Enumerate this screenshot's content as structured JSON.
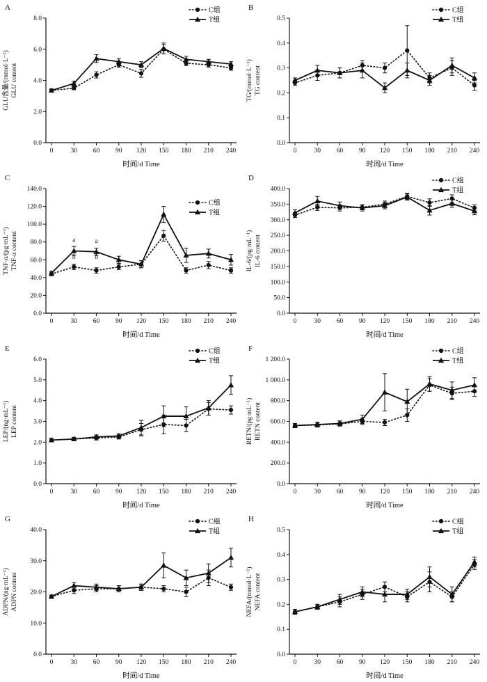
{
  "figure": {
    "xlabel": "时间/d Time",
    "legend": [
      "C组",
      "T组"
    ],
    "ink_color": "#111111"
  },
  "chart_data": [
    {
      "id": "A",
      "panel_label": "A",
      "type": "line",
      "x": [
        0,
        30,
        60,
        90,
        120,
        150,
        180,
        210,
        240
      ],
      "xlabel": "时间/d Time",
      "ylabel_cn": "GLU含量/(mmol·L⁻¹)",
      "ylabel_en": "GLU content",
      "ylim": [
        0,
        8
      ],
      "yticks": [
        0,
        2,
        4,
        6,
        8
      ],
      "ytick_labels": [
        "0.0",
        "2.0",
        "4.0",
        "6.0",
        "8.0"
      ],
      "series": [
        {
          "name": "C组",
          "marker": "circle",
          "line": "dotted",
          "values": [
            3.35,
            3.5,
            4.35,
            5.0,
            4.45,
            6.0,
            5.1,
            5.0,
            4.8
          ],
          "errors": [
            0.1,
            0.1,
            0.2,
            0.15,
            0.25,
            0.3,
            0.15,
            0.15,
            0.15
          ]
        },
        {
          "name": "T组",
          "marker": "triangle",
          "line": "solid",
          "values": [
            3.35,
            3.8,
            5.4,
            5.2,
            5.0,
            6.05,
            5.35,
            5.2,
            5.05
          ],
          "errors": [
            0.1,
            0.15,
            0.25,
            0.2,
            0.2,
            0.35,
            0.2,
            0.15,
            0.15
          ]
        }
      ],
      "annotations": []
    },
    {
      "id": "B",
      "panel_label": "B",
      "type": "line",
      "x": [
        0,
        30,
        60,
        90,
        120,
        150,
        180,
        210,
        240
      ],
      "xlabel": "时间/d Time",
      "ylabel_cn": "TG/(mmol·L⁻¹)",
      "ylabel_en": "TG content",
      "ylim": [
        0,
        0.5
      ],
      "yticks": [
        0,
        0.1,
        0.2,
        0.3,
        0.4,
        0.5
      ],
      "ytick_labels": [
        "0.0",
        "0.1",
        "0.2",
        "0.3",
        "0.4",
        "0.5"
      ],
      "series": [
        {
          "name": "C组",
          "marker": "circle",
          "line": "dotted",
          "values": [
            0.24,
            0.27,
            0.28,
            0.31,
            0.3,
            0.37,
            0.26,
            0.3,
            0.23
          ],
          "errors": [
            0.01,
            0.02,
            0.02,
            0.02,
            0.02,
            0.1,
            0.02,
            0.03,
            0.02
          ]
        },
        {
          "name": "T组",
          "marker": "triangle",
          "line": "solid",
          "values": [
            0.25,
            0.29,
            0.28,
            0.29,
            0.22,
            0.29,
            0.25,
            0.31,
            0.26
          ],
          "errors": [
            0.01,
            0.02,
            0.02,
            0.03,
            0.02,
            0.03,
            0.02,
            0.03,
            0.02
          ]
        }
      ],
      "annotations": []
    },
    {
      "id": "C",
      "panel_label": "C",
      "type": "line",
      "x": [
        0,
        30,
        60,
        90,
        120,
        150,
        180,
        210,
        240
      ],
      "xlabel": "时间/d Time",
      "ylabel_cn": "TNF-α/(pg·mL⁻¹)",
      "ylabel_en": "TNF-α content",
      "ylim": [
        0,
        140
      ],
      "yticks": [
        0,
        20,
        40,
        60,
        80,
        100,
        120,
        140
      ],
      "ytick_labels": [
        "0.0",
        "20.0",
        "40.0",
        "60.0",
        "80.0",
        "100.0",
        "120.0",
        "140.0"
      ],
      "series": [
        {
          "name": "C组",
          "marker": "circle",
          "line": "dotted",
          "values": [
            44,
            52,
            48,
            52,
            55,
            87,
            48,
            54,
            48
          ],
          "errors": [
            2,
            3,
            3,
            3,
            4,
            6,
            3,
            4,
            3
          ]
        },
        {
          "name": "T组",
          "marker": "triangle",
          "line": "solid",
          "values": [
            45,
            70,
            69,
            60,
            55,
            111,
            65,
            67,
            60
          ],
          "errors": [
            2,
            5,
            4,
            4,
            4,
            9,
            8,
            5,
            6
          ]
        }
      ],
      "annotations": [
        {
          "x": 30,
          "y": 80,
          "text": "a"
        },
        {
          "x": 60,
          "y": 79,
          "text": "a"
        },
        {
          "x": 30,
          "y": 61,
          "text": "b"
        },
        {
          "x": 60,
          "y": 61,
          "text": "b"
        }
      ]
    },
    {
      "id": "D",
      "panel_label": "D",
      "type": "line",
      "x": [
        0,
        30,
        60,
        90,
        120,
        150,
        180,
        210,
        240
      ],
      "xlabel": "时间/d Time",
      "ylabel_cn": "IL-6/(pg·mL⁻¹)",
      "ylabel_en": "IL-6 content",
      "ylim": [
        0,
        400
      ],
      "yticks": [
        0,
        50,
        100,
        150,
        200,
        250,
        300,
        350,
        400
      ],
      "ytick_labels": [
        "0.0",
        "50.0",
        "100.0",
        "150.0",
        "200.0",
        "250.0",
        "300.0",
        "350.0",
        "400.0"
      ],
      "series": [
        {
          "name": "C组",
          "marker": "circle",
          "line": "dotted",
          "values": [
            315,
            340,
            338,
            340,
            350,
            375,
            355,
            368,
            338
          ],
          "errors": [
            8,
            10,
            10,
            8,
            10,
            10,
            12,
            12,
            10
          ]
        },
        {
          "name": "T组",
          "marker": "triangle",
          "line": "solid",
          "values": [
            322,
            360,
            345,
            338,
            345,
            373,
            330,
            352,
            328
          ],
          "errors": [
            10,
            15,
            12,
            10,
            10,
            10,
            15,
            12,
            12
          ]
        }
      ],
      "annotations": []
    },
    {
      "id": "E",
      "panel_label": "E",
      "type": "line",
      "x": [
        0,
        30,
        60,
        90,
        120,
        150,
        180,
        210,
        240
      ],
      "xlabel": "时间/d Time",
      "ylabel_cn": "LEP/(ng·mL⁻¹)",
      "ylabel_en": "LEP content",
      "ylim": [
        0,
        6
      ],
      "yticks": [
        0,
        1,
        2,
        3,
        4,
        5,
        6
      ],
      "ytick_labels": [
        "0.0",
        "1.0",
        "2.0",
        "3.0",
        "4.0",
        "5.0",
        "6.0"
      ],
      "series": [
        {
          "name": "C组",
          "marker": "circle",
          "line": "dotted",
          "values": [
            2.1,
            2.15,
            2.2,
            2.25,
            2.6,
            2.85,
            2.8,
            3.6,
            3.55
          ],
          "errors": [
            0.08,
            0.08,
            0.1,
            0.1,
            0.3,
            0.45,
            0.3,
            0.3,
            0.2
          ]
        },
        {
          "name": "T组",
          "marker": "triangle",
          "line": "solid",
          "values": [
            2.1,
            2.15,
            2.25,
            2.3,
            2.7,
            3.25,
            3.25,
            3.65,
            4.75
          ],
          "errors": [
            0.08,
            0.08,
            0.1,
            0.1,
            0.35,
            0.5,
            0.45,
            0.35,
            0.45
          ]
        }
      ],
      "annotations": []
    },
    {
      "id": "F",
      "panel_label": "F",
      "type": "line",
      "x": [
        0,
        30,
        60,
        90,
        120,
        150,
        180,
        210,
        240
      ],
      "xlabel": "时间/d Time",
      "ylabel_cn": "RETN/(pg·mL⁻¹)",
      "ylabel_en": "RETN content",
      "ylim": [
        0,
        1200
      ],
      "yticks": [
        0,
        200,
        400,
        600,
        800,
        1000,
        1200
      ],
      "ytick_labels": [
        "0.0",
        "200.0",
        "400.0",
        "600.0",
        "800.0",
        "1 000.0",
        "1 200.0"
      ],
      "series": [
        {
          "name": "C组",
          "marker": "circle",
          "line": "dotted",
          "values": [
            560,
            565,
            575,
            600,
            590,
            660,
            950,
            870,
            890
          ],
          "errors": [
            20,
            20,
            20,
            30,
            30,
            60,
            60,
            60,
            50
          ]
        },
        {
          "name": "T组",
          "marker": "triangle",
          "line": "solid",
          "values": [
            560,
            570,
            580,
            620,
            880,
            790,
            960,
            900,
            950
          ],
          "errors": [
            20,
            20,
            25,
            40,
            180,
            120,
            70,
            80,
            70
          ]
        }
      ],
      "annotations": []
    },
    {
      "id": "G",
      "panel_label": "G",
      "type": "line",
      "x": [
        0,
        30,
        60,
        90,
        120,
        150,
        180,
        210,
        240
      ],
      "xlabel": "时间/d Time",
      "ylabel_cn": "ADPN/(ng·mL⁻¹)",
      "ylabel_en": "ADPN content",
      "ylim": [
        0,
        40
      ],
      "yticks": [
        0,
        10,
        20,
        30,
        40
      ],
      "ytick_labels": [
        "0.0",
        "10.0",
        "20.0",
        "30.0",
        "40.0"
      ],
      "series": [
        {
          "name": "C组",
          "marker": "circle",
          "line": "dotted",
          "values": [
            18.5,
            20.5,
            21,
            21,
            21.5,
            21,
            20,
            24.5,
            21.5
          ],
          "errors": [
            0.5,
            1,
            1,
            1,
            1,
            1,
            1.5,
            2.5,
            1
          ]
        },
        {
          "name": "T组",
          "marker": "triangle",
          "line": "solid",
          "values": [
            18.5,
            22,
            21.5,
            21,
            21.5,
            28.5,
            24.5,
            26,
            31
          ],
          "errors": [
            0.5,
            1,
            1,
            1,
            1,
            4,
            2.5,
            3,
            3
          ]
        }
      ],
      "annotations": []
    },
    {
      "id": "H",
      "panel_label": "H",
      "type": "line",
      "x": [
        0,
        30,
        60,
        90,
        120,
        150,
        180,
        210,
        240
      ],
      "xlabel": "时间/d Time",
      "ylabel_cn": "NEFA/(mmol·L⁻¹)",
      "ylabel_en": "NEFA content",
      "ylim": [
        0,
        0.5
      ],
      "yticks": [
        0,
        0.1,
        0.2,
        0.3,
        0.4,
        0.5
      ],
      "ytick_labels": [
        "0.0",
        "0.1",
        "0.2",
        "0.3",
        "0.4",
        "0.5"
      ],
      "series": [
        {
          "name": "C组",
          "marker": "circle",
          "line": "dotted",
          "values": [
            0.17,
            0.19,
            0.21,
            0.24,
            0.27,
            0.23,
            0.29,
            0.23,
            0.36
          ],
          "errors": [
            0.01,
            0.01,
            0.02,
            0.02,
            0.02,
            0.02,
            0.04,
            0.02,
            0.02
          ]
        },
        {
          "name": "T组",
          "marker": "triangle",
          "line": "solid",
          "values": [
            0.17,
            0.19,
            0.22,
            0.25,
            0.24,
            0.24,
            0.31,
            0.24,
            0.37
          ],
          "errors": [
            0.01,
            0.01,
            0.02,
            0.02,
            0.03,
            0.02,
            0.04,
            0.03,
            0.02
          ]
        }
      ],
      "annotations": []
    }
  ]
}
